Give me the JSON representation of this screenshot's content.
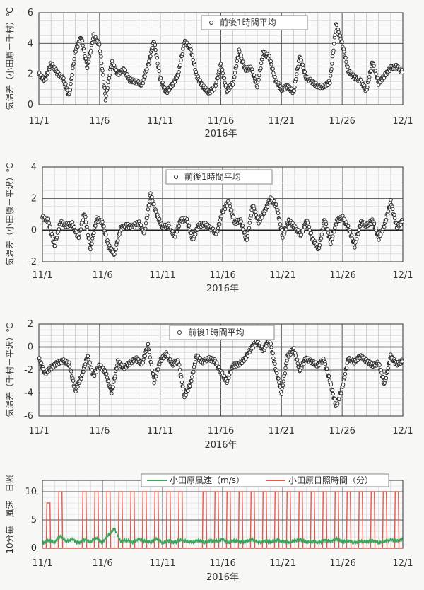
{
  "chart_data": [
    {
      "type": "scatter",
      "legend": "前後1時間平均",
      "ylabel": "気温差（小田原－千村）℃",
      "xlabel": "2016年",
      "ylim": [
        0,
        6
      ],
      "yticks": [
        "0",
        "2",
        "4",
        "6"
      ],
      "xticks": [
        "11/1",
        "11/6",
        "11/11",
        "11/16",
        "11/21",
        "11/26",
        "12/1"
      ],
      "grid": true,
      "x_range_days": [
        0,
        30
      ],
      "series": [
        {
          "x": [
            0,
            0.5,
            1,
            1.5,
            2,
            2.5,
            3,
            3.5,
            4,
            4.5,
            5,
            5.5,
            6,
            6.5,
            7,
            7.5,
            8,
            8.5,
            9,
            9.5,
            10,
            10.5,
            11,
            11.5,
            12,
            12.5,
            13,
            13.5,
            14,
            14.5,
            15,
            15.5,
            16,
            16.5,
            17,
            17.5,
            18,
            18.5,
            19,
            19.5,
            20,
            20.5,
            21,
            21.5,
            22,
            22.5,
            23,
            23.5,
            24,
            24.5,
            25,
            25.5,
            26,
            26.5,
            27,
            27.5,
            28,
            28.5,
            29,
            29.5,
            30
          ],
          "y": [
            2.0,
            1.6,
            2.7,
            2.1,
            1.7,
            0.6,
            3.5,
            4.4,
            2.4,
            4.5,
            3.9,
            0.4,
            2.8,
            2.0,
            2.3,
            1.6,
            1.5,
            1.3,
            2.6,
            4.2,
            1.7,
            0.8,
            1.3,
            2.0,
            4.1,
            3.7,
            1.9,
            1.2,
            0.8,
            1.1,
            2.6,
            0.9,
            1.4,
            3.5,
            2.3,
            2.4,
            1.2,
            3.4,
            3.1,
            1.6,
            1.0,
            1.2,
            0.8,
            3.2,
            1.8,
            1.5,
            1.2,
            1.2,
            1.5,
            5.2,
            4.0,
            2.2,
            1.8,
            1.6,
            0.9,
            2.8,
            1.4,
            1.9,
            2.4,
            2.5,
            2.1
          ]
        }
      ]
    },
    {
      "type": "scatter",
      "legend": "前後1時間平均",
      "ylabel": "気温差（小田原－平沢）℃",
      "xlabel": "2016年",
      "ylim": [
        -2,
        4
      ],
      "yticks": [
        "-2",
        "0",
        "2",
        "4"
      ],
      "xticks": [
        "11/1",
        "11/6",
        "11/11",
        "11/16",
        "11/21",
        "11/26",
        "12/1"
      ],
      "grid": true,
      "x_range_days": [
        0,
        30
      ],
      "series": [
        {
          "x": [
            0,
            0.5,
            1,
            1.5,
            2,
            2.5,
            3,
            3.5,
            4,
            4.5,
            5,
            5.5,
            6,
            6.5,
            7,
            7.5,
            8,
            8.5,
            9,
            9.5,
            10,
            10.5,
            11,
            11.5,
            12,
            12.5,
            13,
            13.5,
            14,
            14.5,
            15,
            15.5,
            16,
            16.5,
            17,
            17.5,
            18,
            18.5,
            19,
            19.5,
            20,
            20.5,
            21,
            21.5,
            22,
            22.5,
            23,
            23.5,
            24,
            24.5,
            25,
            25.5,
            26,
            26.5,
            27,
            27.5,
            28,
            28.5,
            29,
            29.5,
            30
          ],
          "y": [
            0.8,
            0.6,
            -1.0,
            0.5,
            0.3,
            0.4,
            -0.5,
            1.1,
            -1.2,
            0.7,
            0.5,
            -1.0,
            -1.5,
            0.1,
            0.3,
            0.2,
            0.5,
            -0.2,
            2.3,
            1.0,
            0.2,
            0.3,
            -0.4,
            0.6,
            0.7,
            -0.6,
            0.3,
            0.4,
            0.1,
            -0.2,
            1.2,
            1.8,
            0.5,
            0.6,
            -0.7,
            1.6,
            0.5,
            1.2,
            2.0,
            1.5,
            -0.4,
            0.6,
            0.2,
            -0.3,
            0.6,
            -0.6,
            -1.2,
            0.7,
            -0.8,
            0.6,
            0.8,
            0.1,
            -1.0,
            0.5,
            0.3,
            0.6,
            -0.5,
            0.4,
            1.8,
            0.2,
            0.6
          ]
        }
      ]
    },
    {
      "type": "scatter",
      "legend": "前後1時間平均",
      "ylabel": "気温差（千村－平沢）℃",
      "xlabel": "2016年",
      "ylim": [
        -6,
        2
      ],
      "yticks": [
        "-6",
        "-4",
        "-2",
        "0",
        "2"
      ],
      "xticks": [
        "11/1",
        "11/6",
        "11/11",
        "11/16",
        "11/21",
        "11/26",
        "12/1"
      ],
      "grid": true,
      "x_range_days": [
        0,
        30
      ],
      "series": [
        {
          "x": [
            0,
            0.5,
            1,
            1.5,
            2,
            2.5,
            3,
            3.5,
            4,
            4.5,
            5,
            5.5,
            6,
            6.5,
            7,
            7.5,
            8,
            8.5,
            9,
            9.5,
            10,
            10.5,
            11,
            11.5,
            12,
            12.5,
            13,
            13.5,
            14,
            14.5,
            15,
            15.5,
            16,
            16.5,
            17,
            17.5,
            18,
            18.5,
            19,
            19.5,
            20,
            20.5,
            21,
            21.5,
            22,
            22.5,
            23,
            23.5,
            24,
            24.5,
            25,
            25.5,
            26,
            26.5,
            27,
            27.5,
            28,
            28.5,
            29,
            29.5,
            30
          ],
          "y": [
            -1.0,
            -2.3,
            -1.8,
            -1.4,
            -1.2,
            -1.5,
            -3.8,
            -2.6,
            -0.8,
            -2.5,
            -1.6,
            -2.2,
            -4.0,
            -1.3,
            -1.8,
            -1.4,
            -1.0,
            -1.5,
            0.2,
            -3.0,
            -1.2,
            -0.6,
            -1.5,
            -1.2,
            -4.3,
            -3.2,
            -0.8,
            -1.3,
            -1.0,
            -1.2,
            -2.2,
            -3.0,
            -1.6,
            -1.5,
            -1.0,
            -0.1,
            0.5,
            -0.3,
            0.8,
            -1.8,
            -4.0,
            -0.8,
            -0.2,
            -2.0,
            -1.0,
            -1.3,
            -1.6,
            -1.1,
            -3.0,
            -5.2,
            -3.6,
            -1.0,
            -1.3,
            -0.8,
            -1.2,
            -1.6,
            -1.4,
            -3.2,
            -0.8,
            -1.5,
            -1.2
          ]
        }
      ]
    },
    {
      "type": "line",
      "ylabel": "10分毎　風速　日照",
      "xlabel": "2016年",
      "ylim": [
        0,
        12
      ],
      "yticks": [
        "0",
        "5",
        "10"
      ],
      "xticks": [
        "11/1",
        "11/6",
        "11/11",
        "11/16",
        "11/21",
        "11/26",
        "12/1"
      ],
      "grid": true,
      "x_range_days": [
        0,
        30
      ],
      "series": [
        {
          "name": "小田原風速（m/s）",
          "color": "#3aa65a",
          "x": [
            0,
            0.5,
            1,
            1.5,
            2,
            2.5,
            3,
            3.5,
            4,
            4.5,
            5,
            5.5,
            6,
            6.5,
            7,
            7.5,
            8,
            8.5,
            9,
            9.5,
            10,
            10.5,
            11,
            11.5,
            12,
            12.5,
            13,
            13.5,
            14,
            14.5,
            15,
            15.5,
            16,
            16.5,
            17,
            17.5,
            18,
            18.5,
            19,
            19.5,
            20,
            20.5,
            21,
            21.5,
            22,
            22.5,
            23,
            23.5,
            24,
            24.5,
            25,
            25.5,
            26,
            26.5,
            27,
            27.5,
            28,
            28.5,
            29,
            29.5,
            30
          ],
          "y": [
            0.8,
            1.4,
            1.0,
            2.2,
            1.2,
            1.6,
            0.9,
            1.5,
            1.1,
            1.8,
            1.0,
            2.4,
            3.5,
            1.2,
            1.4,
            1.0,
            1.6,
            1.3,
            1.1,
            1.7,
            0.9,
            1.3,
            1.0,
            1.5,
            1.2,
            1.1,
            1.4,
            1.0,
            1.3,
            1.2,
            1.6,
            1.0,
            1.4,
            1.1,
            1.2,
            1.5,
            1.0,
            1.3,
            1.1,
            1.4,
            1.2,
            1.0,
            1.3,
            1.5,
            1.1,
            1.2,
            1.0,
            1.4,
            1.2,
            1.6,
            1.1,
            1.3,
            1.0,
            1.2,
            1.1,
            1.3,
            1.0,
            1.2,
            1.5,
            1.3,
            1.6
          ]
        },
        {
          "name": "小田原日照時間（分）",
          "color": "#e25a4e",
          "days": [
            0,
            1,
            2,
            3,
            4,
            5,
            6,
            7,
            8,
            9,
            10,
            11,
            12,
            13,
            14,
            15,
            16,
            17,
            18,
            19,
            20,
            21,
            22,
            23,
            24,
            25,
            26,
            27,
            28,
            29
          ],
          "daily_peak": [
            8,
            10,
            0,
            10,
            10,
            10,
            10,
            10,
            10,
            10,
            10,
            10,
            0,
            10,
            10,
            10,
            10,
            10,
            10,
            10,
            10,
            10,
            10,
            10,
            10,
            10,
            10,
            10,
            10,
            10
          ]
        }
      ]
    }
  ]
}
